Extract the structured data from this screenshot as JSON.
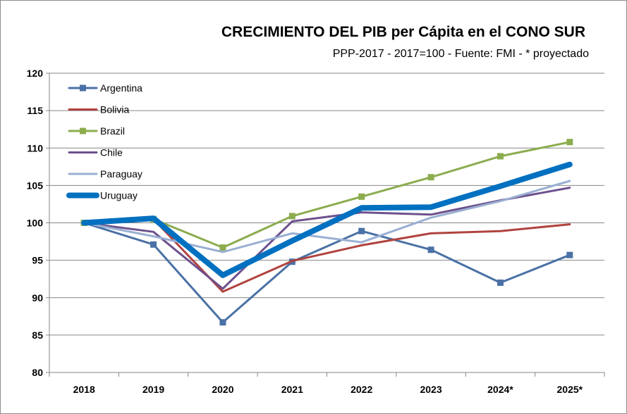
{
  "chart_data": {
    "type": "line",
    "title": "CRECIMIENTO DEL PIB per Cápita en el CONO SUR",
    "subtitle": "PPP-2017 - 2017=100 - Fuente: FMI - * proyectado",
    "xlabel": "",
    "ylabel": "",
    "categories": [
      "2018",
      "2019",
      "2020",
      "2021",
      "2022",
      "2023",
      "2024*",
      "2025*"
    ],
    "ylim": [
      80,
      120
    ],
    "yticks": [
      80,
      85,
      90,
      95,
      100,
      105,
      110,
      115,
      120
    ],
    "grid": true,
    "legend_position": "top-left",
    "series": [
      {
        "name": "Argentina",
        "color": "#4a71a5",
        "marker": "square",
        "emphasis": false,
        "values": [
          100,
          97.1,
          86.7,
          94.8,
          98.9,
          96.4,
          92.0,
          95.7
        ]
      },
      {
        "name": "Bolivia",
        "color": "#b0433f",
        "marker": "none",
        "emphasis": false,
        "values": [
          100,
          100.5,
          90.8,
          94.9,
          97.0,
          98.6,
          98.9,
          99.8
        ]
      },
      {
        "name": "Brazil",
        "color": "#8cac4e",
        "marker": "square",
        "emphasis": false,
        "values": [
          100,
          100.5,
          96.7,
          100.9,
          103.5,
          106.1,
          108.9,
          110.8
        ]
      },
      {
        "name": "Chile",
        "color": "#6d518d",
        "marker": "none",
        "emphasis": false,
        "values": [
          100,
          98.8,
          91.2,
          100.2,
          101.4,
          101.1,
          103.0,
          104.7
        ]
      },
      {
        "name": "Paraguay",
        "color": "#9aafd3",
        "marker": "none",
        "emphasis": false,
        "values": [
          100,
          98.2,
          96.1,
          98.6,
          97.4,
          100.7,
          102.9,
          105.6
        ]
      },
      {
        "name": "Uruguay",
        "color": "#0070c0",
        "marker": "none",
        "emphasis": true,
        "values": [
          100,
          100.6,
          93.0,
          97.6,
          102.0,
          102.1,
          104.9,
          107.8
        ]
      }
    ]
  }
}
